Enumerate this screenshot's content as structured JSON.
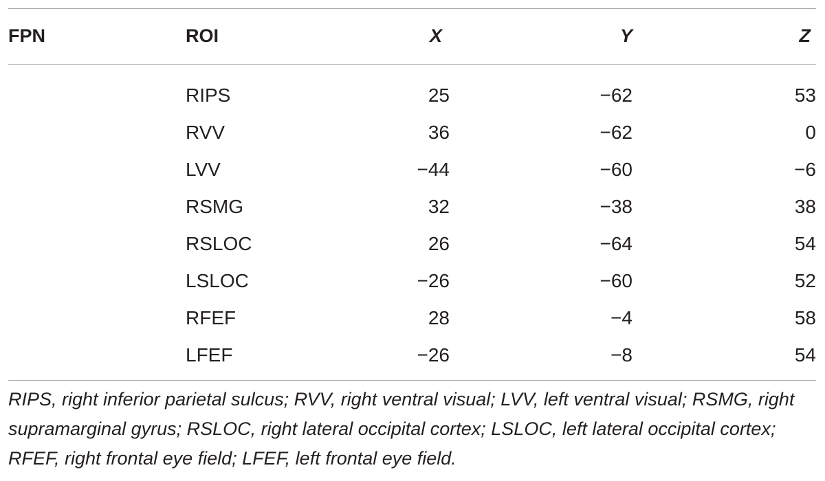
{
  "table": {
    "headers": {
      "fpn": "FPN",
      "roi": "ROI",
      "x": "X",
      "y": "Y",
      "z": "Z"
    },
    "rows": [
      {
        "fpn": "",
        "roi": "RIPS",
        "x": "25",
        "y": "−62",
        "z": "53"
      },
      {
        "fpn": "",
        "roi": "RVV",
        "x": "36",
        "y": "−62",
        "z": "0"
      },
      {
        "fpn": "",
        "roi": "LVV",
        "x": "−44",
        "y": "−60",
        "z": "−6"
      },
      {
        "fpn": "",
        "roi": "RSMG",
        "x": "32",
        "y": "−38",
        "z": "38"
      },
      {
        "fpn": "",
        "roi": "RSLOC",
        "x": "26",
        "y": "−64",
        "z": "54"
      },
      {
        "fpn": "",
        "roi": "LSLOC",
        "x": "−26",
        "y": "−60",
        "z": "52"
      },
      {
        "fpn": "",
        "roi": "RFEF",
        "x": "28",
        "y": "−4",
        "z": "58"
      },
      {
        "fpn": "",
        "roi": "LFEF",
        "x": "−26",
        "y": "−8",
        "z": "54"
      }
    ]
  },
  "footnote": "RIPS, right inferior parietal sulcus; RVV, right ventral visual; LVV, left ventral visual; RSMG, right supramarginal gyrus; RSLOC, right lateral occipital cortex; LSLOC, left lateral occipital cortex; RFEF, right frontal eye field; LFEF, left frontal eye field."
}
